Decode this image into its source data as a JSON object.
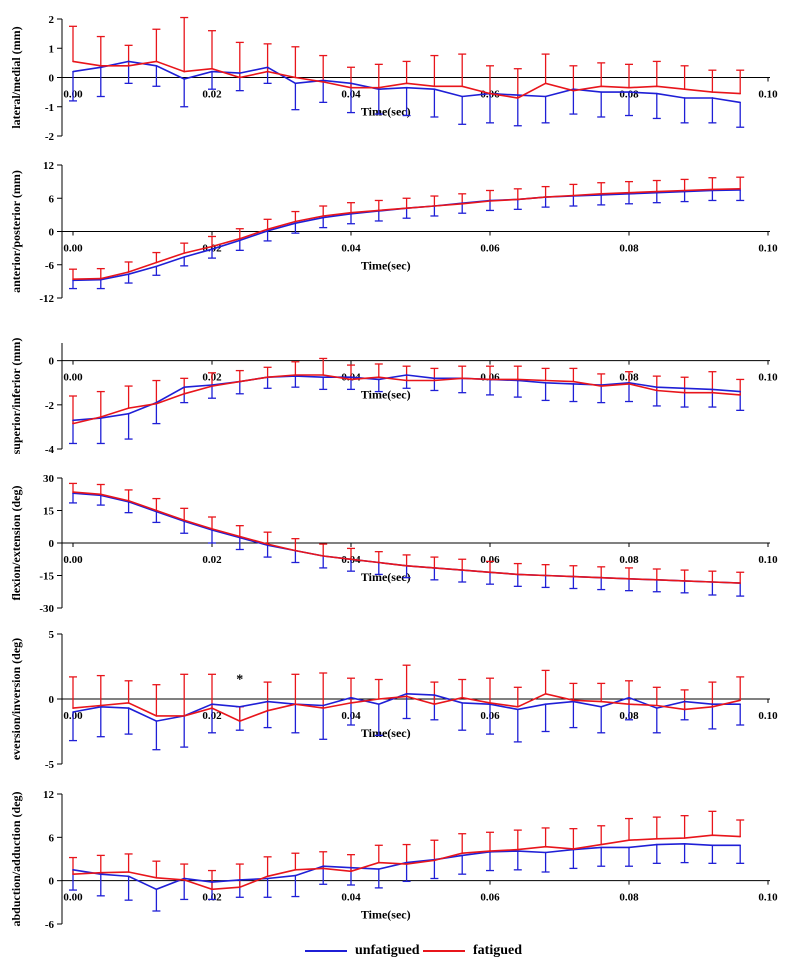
{
  "legend": {
    "unfatigued": "unfatigued",
    "fatigued": "fatigued"
  },
  "colors": {
    "unfatigued": "#1f1fd6",
    "fatigued": "#e8151b",
    "axis": "#000000"
  },
  "chart_data": [
    {
      "type": "line",
      "ylabel": "lateral/medial (mm)",
      "xlabel": "Time(sec)",
      "ylim": [
        -2,
        2
      ],
      "yticks": [
        -2,
        -1,
        0,
        1,
        2
      ],
      "yticklabels": [
        "-2",
        "-1",
        "0",
        "1",
        "2"
      ],
      "xlim": [
        0,
        0.1
      ],
      "xticks": [
        0,
        0.02,
        0.04,
        0.06,
        0.08,
        0.1
      ],
      "xticklabels": [
        "0.00",
        "0.02",
        "0.04",
        "0.06",
        "0.08",
        "0.10"
      ],
      "x": [
        0,
        0.004,
        0.008,
        0.012,
        0.016,
        0.02,
        0.024,
        0.028,
        0.032,
        0.036,
        0.04,
        0.044,
        0.048,
        0.052,
        0.056,
        0.06,
        0.064,
        0.068,
        0.072,
        0.076,
        0.08,
        0.084,
        0.088,
        0.092,
        0.096
      ],
      "series": [
        {
          "name": "unfatigued",
          "values": [
            0.2,
            0.35,
            0.55,
            0.4,
            -0.05,
            0.2,
            0.15,
            0.35,
            -0.2,
            -0.1,
            -0.2,
            -0.4,
            -0.35,
            -0.4,
            -0.65,
            -0.55,
            -0.6,
            -0.65,
            -0.4,
            -0.5,
            -0.5,
            -0.55,
            -0.7,
            -0.7,
            -0.85
          ],
          "err": [
            1.0,
            1.0,
            0.75,
            0.7,
            0.95,
            0.6,
            0.6,
            0.55,
            0.9,
            0.75,
            1.0,
            0.85,
            0.95,
            0.95,
            0.95,
            1.0,
            1.05,
            0.9,
            0.85,
            0.85,
            0.8,
            0.85,
            0.85,
            0.85,
            0.85
          ]
        },
        {
          "name": "fatigued",
          "values": [
            0.55,
            0.4,
            0.4,
            0.55,
            0.2,
            0.3,
            0.0,
            0.2,
            0.0,
            -0.15,
            -0.35,
            -0.35,
            -0.2,
            -0.3,
            -0.3,
            -0.55,
            -0.7,
            -0.2,
            -0.45,
            -0.3,
            -0.35,
            -0.3,
            -0.4,
            -0.5,
            -0.55
          ],
          "err": [
            1.2,
            1.0,
            0.7,
            1.1,
            1.85,
            1.3,
            1.2,
            0.95,
            1.05,
            0.9,
            0.7,
            0.8,
            0.75,
            1.05,
            1.1,
            0.95,
            1.0,
            1.0,
            0.85,
            0.8,
            0.8,
            0.85,
            0.8,
            0.75,
            0.8
          ]
        }
      ]
    },
    {
      "type": "line",
      "ylabel": "anterior/posterior (mm)",
      "xlabel": "Time(sec)",
      "ylim": [
        -12,
        12
      ],
      "yticks": [
        -12,
        -6,
        0,
        6,
        12
      ],
      "yticklabels": [
        "-12",
        "-6",
        "0",
        "6",
        "12"
      ],
      "xlim": [
        0,
        0.1
      ],
      "xticks": [
        0,
        0.02,
        0.04,
        0.06,
        0.08,
        0.1
      ],
      "xticklabels": [
        "0.00",
        "0.02",
        "0.04",
        "0.06",
        "0.08",
        "0.10"
      ],
      "x": [
        0,
        0.004,
        0.008,
        0.012,
        0.016,
        0.02,
        0.024,
        0.028,
        0.032,
        0.036,
        0.04,
        0.044,
        0.048,
        0.052,
        0.056,
        0.06,
        0.064,
        0.068,
        0.072,
        0.076,
        0.08,
        0.084,
        0.088,
        0.092,
        0.096
      ],
      "series": [
        {
          "name": "unfatigued",
          "values": [
            -8.8,
            -8.7,
            -7.7,
            -6.3,
            -4.6,
            -3.2,
            -1.6,
            0.1,
            1.5,
            2.5,
            3.2,
            3.7,
            4.2,
            4.6,
            5.1,
            5.6,
            5.8,
            6.2,
            6.4,
            6.6,
            6.8,
            7.0,
            7.2,
            7.4,
            7.5
          ],
          "err": [
            1.5,
            1.6,
            1.6,
            1.6,
            1.6,
            1.6,
            1.8,
            1.8,
            1.8,
            1.8,
            1.8,
            1.8,
            1.8,
            1.8,
            1.8,
            1.8,
            1.8,
            1.8,
            1.8,
            1.8,
            1.8,
            1.8,
            1.8,
            1.8,
            1.9
          ]
        },
        {
          "name": "fatigued",
          "values": [
            -8.6,
            -8.5,
            -7.3,
            -5.6,
            -3.9,
            -2.7,
            -1.3,
            0.4,
            1.8,
            2.8,
            3.4,
            3.8,
            4.2,
            4.6,
            5.0,
            5.5,
            5.8,
            6.2,
            6.5,
            6.8,
            7.0,
            7.2,
            7.4,
            7.6,
            7.7
          ],
          "err": [
            1.8,
            1.8,
            1.8,
            1.8,
            1.8,
            1.8,
            1.8,
            1.8,
            1.8,
            1.8,
            1.8,
            1.8,
            1.8,
            1.8,
            1.8,
            1.9,
            1.9,
            1.9,
            2.0,
            2.0,
            2.0,
            2.0,
            2.0,
            2.1,
            2.1
          ]
        }
      ]
    },
    {
      "type": "line",
      "ylabel": "superior/inferior (mm)",
      "xlabel": "Time(sec)",
      "ylim": [
        -4,
        0.8
      ],
      "yticks": [
        -4,
        -2,
        0
      ],
      "yticklabels": [
        "-4",
        "-2",
        "0"
      ],
      "xlim": [
        0,
        0.1
      ],
      "xticks": [
        0,
        0.02,
        0.04,
        0.06,
        0.08,
        0.1
      ],
      "xticklabels": [
        "0.00",
        "0.02",
        "0.04",
        "0.06",
        "0.08",
        "0.10"
      ],
      "x": [
        0,
        0.004,
        0.008,
        0.012,
        0.016,
        0.02,
        0.024,
        0.028,
        0.032,
        0.036,
        0.04,
        0.044,
        0.048,
        0.052,
        0.056,
        0.06,
        0.064,
        0.068,
        0.072,
        0.076,
        0.08,
        0.084,
        0.088,
        0.092,
        0.096
      ],
      "series": [
        {
          "name": "unfatigued",
          "values": [
            -2.7,
            -2.6,
            -2.4,
            -1.9,
            -1.2,
            -1.1,
            -0.95,
            -0.75,
            -0.7,
            -0.75,
            -0.75,
            -0.85,
            -0.65,
            -0.8,
            -0.8,
            -0.85,
            -0.9,
            -1.0,
            -1.05,
            -1.1,
            -1.0,
            -1.2,
            -1.25,
            -1.3,
            -1.4
          ],
          "err": [
            1.05,
            1.15,
            1.15,
            0.95,
            0.7,
            0.6,
            0.55,
            0.5,
            0.5,
            0.55,
            0.55,
            0.55,
            0.6,
            0.55,
            0.65,
            0.7,
            0.75,
            0.8,
            0.8,
            0.8,
            0.85,
            0.85,
            0.85,
            0.8,
            0.85
          ]
        },
        {
          "name": "fatigued",
          "values": [
            -2.85,
            -2.55,
            -2.15,
            -1.95,
            -1.5,
            -1.15,
            -0.95,
            -0.75,
            -0.65,
            -0.65,
            -0.85,
            -0.75,
            -0.9,
            -0.9,
            -0.8,
            -0.85,
            -0.85,
            -0.9,
            -0.95,
            -1.15,
            -1.05,
            -1.35,
            -1.45,
            -1.45,
            -1.55
          ],
          "err": [
            1.25,
            1.15,
            1.0,
            1.05,
            0.7,
            0.6,
            0.5,
            0.45,
            0.6,
            0.75,
            0.65,
            0.6,
            0.65,
            0.55,
            0.55,
            0.6,
            0.6,
            0.55,
            0.6,
            0.55,
            0.55,
            0.65,
            0.7,
            0.95,
            0.7
          ]
        }
      ]
    },
    {
      "type": "line",
      "ylabel": "flexion/extension (deg)",
      "xlabel": "Time(sec)",
      "ylim": [
        -30,
        30
      ],
      "yticks": [
        -30,
        -15,
        0,
        15,
        30
      ],
      "yticklabels": [
        "-30",
        "-15",
        "0",
        "15",
        "30"
      ],
      "xlim": [
        0,
        0.1
      ],
      "xticks": [
        0,
        0.02,
        0.04,
        0.06,
        0.08,
        0.1
      ],
      "xticklabels": [
        "0.00",
        "0.02",
        "0.04",
        "0.06",
        "0.08",
        "0.10"
      ],
      "x": [
        0,
        0.004,
        0.008,
        0.012,
        0.016,
        0.02,
        0.024,
        0.028,
        0.032,
        0.036,
        0.04,
        0.044,
        0.048,
        0.052,
        0.056,
        0.06,
        0.064,
        0.068,
        0.072,
        0.076,
        0.08,
        0.084,
        0.088,
        0.092,
        0.096
      ],
      "series": [
        {
          "name": "unfatigued",
          "values": [
            23,
            22,
            19,
            14.5,
            10,
            6,
            2.5,
            -1,
            -3.5,
            -6,
            -7.5,
            -9,
            -10.5,
            -11.5,
            -12.5,
            -13.5,
            -14.5,
            -15,
            -15.5,
            -16,
            -16.5,
            -17,
            -17.5,
            -18,
            -18.5
          ],
          "err": [
            4.5,
            4.5,
            5,
            5,
            5.5,
            6,
            5.5,
            5.5,
            5.5,
            5.5,
            5.5,
            5.5,
            5.5,
            5.5,
            5.5,
            5.5,
            5.5,
            5.5,
            5.5,
            5.5,
            5.5,
            5.5,
            5.5,
            6,
            6
          ]
        },
        {
          "name": "fatigued",
          "values": [
            23.5,
            22.5,
            19.5,
            15,
            10.5,
            6.5,
            3,
            -0.5,
            -3.5,
            -6,
            -7.5,
            -9,
            -10.5,
            -11.5,
            -12.5,
            -13.5,
            -14.5,
            -15,
            -15.5,
            -16,
            -16.5,
            -17,
            -17.5,
            -18,
            -18.5
          ],
          "err": [
            4,
            4.5,
            5,
            5.5,
            5.5,
            5.5,
            5,
            5.5,
            5.5,
            5.5,
            5,
            5,
            5,
            5,
            5,
            5,
            5,
            5,
            5,
            5,
            5,
            5,
            5,
            5,
            5
          ]
        }
      ]
    },
    {
      "type": "line",
      "ylabel": "eversion/inversion (deg)",
      "xlabel": "Time(sec)",
      "annotation": "*",
      "ylim": [
        -5,
        5
      ],
      "yticks": [
        -5,
        0,
        5
      ],
      "yticklabels": [
        "-5",
        "0",
        "5"
      ],
      "xlim": [
        0,
        0.1
      ],
      "xticks": [
        0,
        0.02,
        0.04,
        0.06,
        0.08,
        0.1
      ],
      "xticklabels": [
        "0.00",
        "0.02",
        "0.04",
        "0.06",
        "0.08",
        "0.10"
      ],
      "x": [
        0,
        0.004,
        0.008,
        0.012,
        0.016,
        0.02,
        0.024,
        0.028,
        0.032,
        0.036,
        0.04,
        0.044,
        0.048,
        0.052,
        0.056,
        0.06,
        0.064,
        0.068,
        0.072,
        0.076,
        0.08,
        0.084,
        0.088,
        0.092,
        0.096
      ],
      "series": [
        {
          "name": "unfatigued",
          "values": [
            -1.0,
            -0.6,
            -0.7,
            -1.7,
            -1.3,
            -0.4,
            -0.6,
            -0.2,
            -0.4,
            -0.5,
            0.1,
            -0.4,
            0.4,
            0.3,
            -0.3,
            -0.4,
            -0.8,
            -0.4,
            -0.2,
            -0.6,
            0.1,
            -0.7,
            -0.2,
            -0.4,
            -0.4
          ],
          "err": [
            2.2,
            2.3,
            2.0,
            2.2,
            2.4,
            2.2,
            1.8,
            2.0,
            2.2,
            2.6,
            2.1,
            2.4,
            1.9,
            1.9,
            2.1,
            2.3,
            2.5,
            2.1,
            2.0,
            2.0,
            1.7,
            1.9,
            1.4,
            1.9,
            1.6
          ]
        },
        {
          "name": "fatigued",
          "values": [
            -0.7,
            -0.5,
            -0.3,
            -1.3,
            -1.3,
            -0.7,
            -1.7,
            -0.9,
            -0.4,
            -0.7,
            -0.3,
            0.0,
            0.2,
            -0.4,
            0.1,
            -0.3,
            -0.6,
            0.4,
            -0.1,
            -0.2,
            -0.4,
            -0.5,
            -0.8,
            -0.6,
            -0.1
          ],
          "err": [
            2.4,
            2.3,
            1.7,
            2.4,
            3.2,
            2.6,
            1.1,
            2.2,
            2.3,
            2.7,
            1.9,
            1.5,
            2.4,
            1.7,
            1.4,
            1.9,
            1.5,
            1.8,
            1.3,
            1.4,
            1.8,
            1.4,
            1.5,
            1.9,
            1.8
          ]
        }
      ]
    },
    {
      "type": "line",
      "ylabel": "abduction/adduction (deg)",
      "xlabel": "Time(sec)",
      "ylim": [
        -6,
        12
      ],
      "yticks": [
        -6,
        0,
        6,
        12
      ],
      "yticklabels": [
        "-6",
        "0",
        "6",
        "12"
      ],
      "xlim": [
        0,
        0.1
      ],
      "xticks": [
        0,
        0.02,
        0.04,
        0.06,
        0.08,
        0.1
      ],
      "xticklabels": [
        "0.00",
        "0.02",
        "0.04",
        "0.06",
        "0.08",
        "0.10"
      ],
      "x": [
        0,
        0.004,
        0.008,
        0.012,
        0.016,
        0.02,
        0.024,
        0.028,
        0.032,
        0.036,
        0.04,
        0.044,
        0.048,
        0.052,
        0.056,
        0.06,
        0.064,
        0.068,
        0.072,
        0.076,
        0.08,
        0.084,
        0.088,
        0.092,
        0.096
      ],
      "series": [
        {
          "name": "unfatigued",
          "values": [
            1.5,
            0.9,
            0.6,
            -1.2,
            0.3,
            -0.2,
            0.1,
            0.3,
            0.7,
            2.0,
            1.8,
            1.6,
            2.5,
            2.9,
            3.5,
            4.0,
            4.1,
            3.9,
            4.3,
            4.6,
            4.6,
            5.0,
            5.1,
            4.9,
            4.9
          ],
          "err": [
            2.8,
            3.0,
            3.3,
            3.0,
            2.9,
            2.4,
            2.4,
            2.6,
            2.9,
            2.5,
            2.4,
            2.6,
            2.6,
            2.6,
            2.6,
            2.6,
            2.6,
            2.7,
            2.6,
            2.6,
            2.6,
            2.6,
            2.6,
            2.5,
            2.5
          ]
        },
        {
          "name": "fatigued",
          "values": [
            0.9,
            1.1,
            1.2,
            0.4,
            0.1,
            -1.2,
            -0.9,
            0.6,
            1.5,
            1.7,
            1.3,
            2.5,
            2.3,
            2.8,
            3.8,
            4.1,
            4.3,
            4.7,
            4.4,
            5.0,
            5.6,
            5.8,
            5.9,
            6.3,
            6.1
          ],
          "err": [
            2.3,
            2.4,
            2.5,
            2.3,
            2.2,
            2.6,
            3.2,
            2.7,
            2.3,
            2.3,
            2.3,
            2.4,
            2.7,
            2.8,
            2.7,
            2.6,
            2.7,
            2.6,
            2.8,
            2.6,
            3.0,
            3.0,
            3.1,
            3.3,
            2.3
          ]
        }
      ]
    }
  ]
}
